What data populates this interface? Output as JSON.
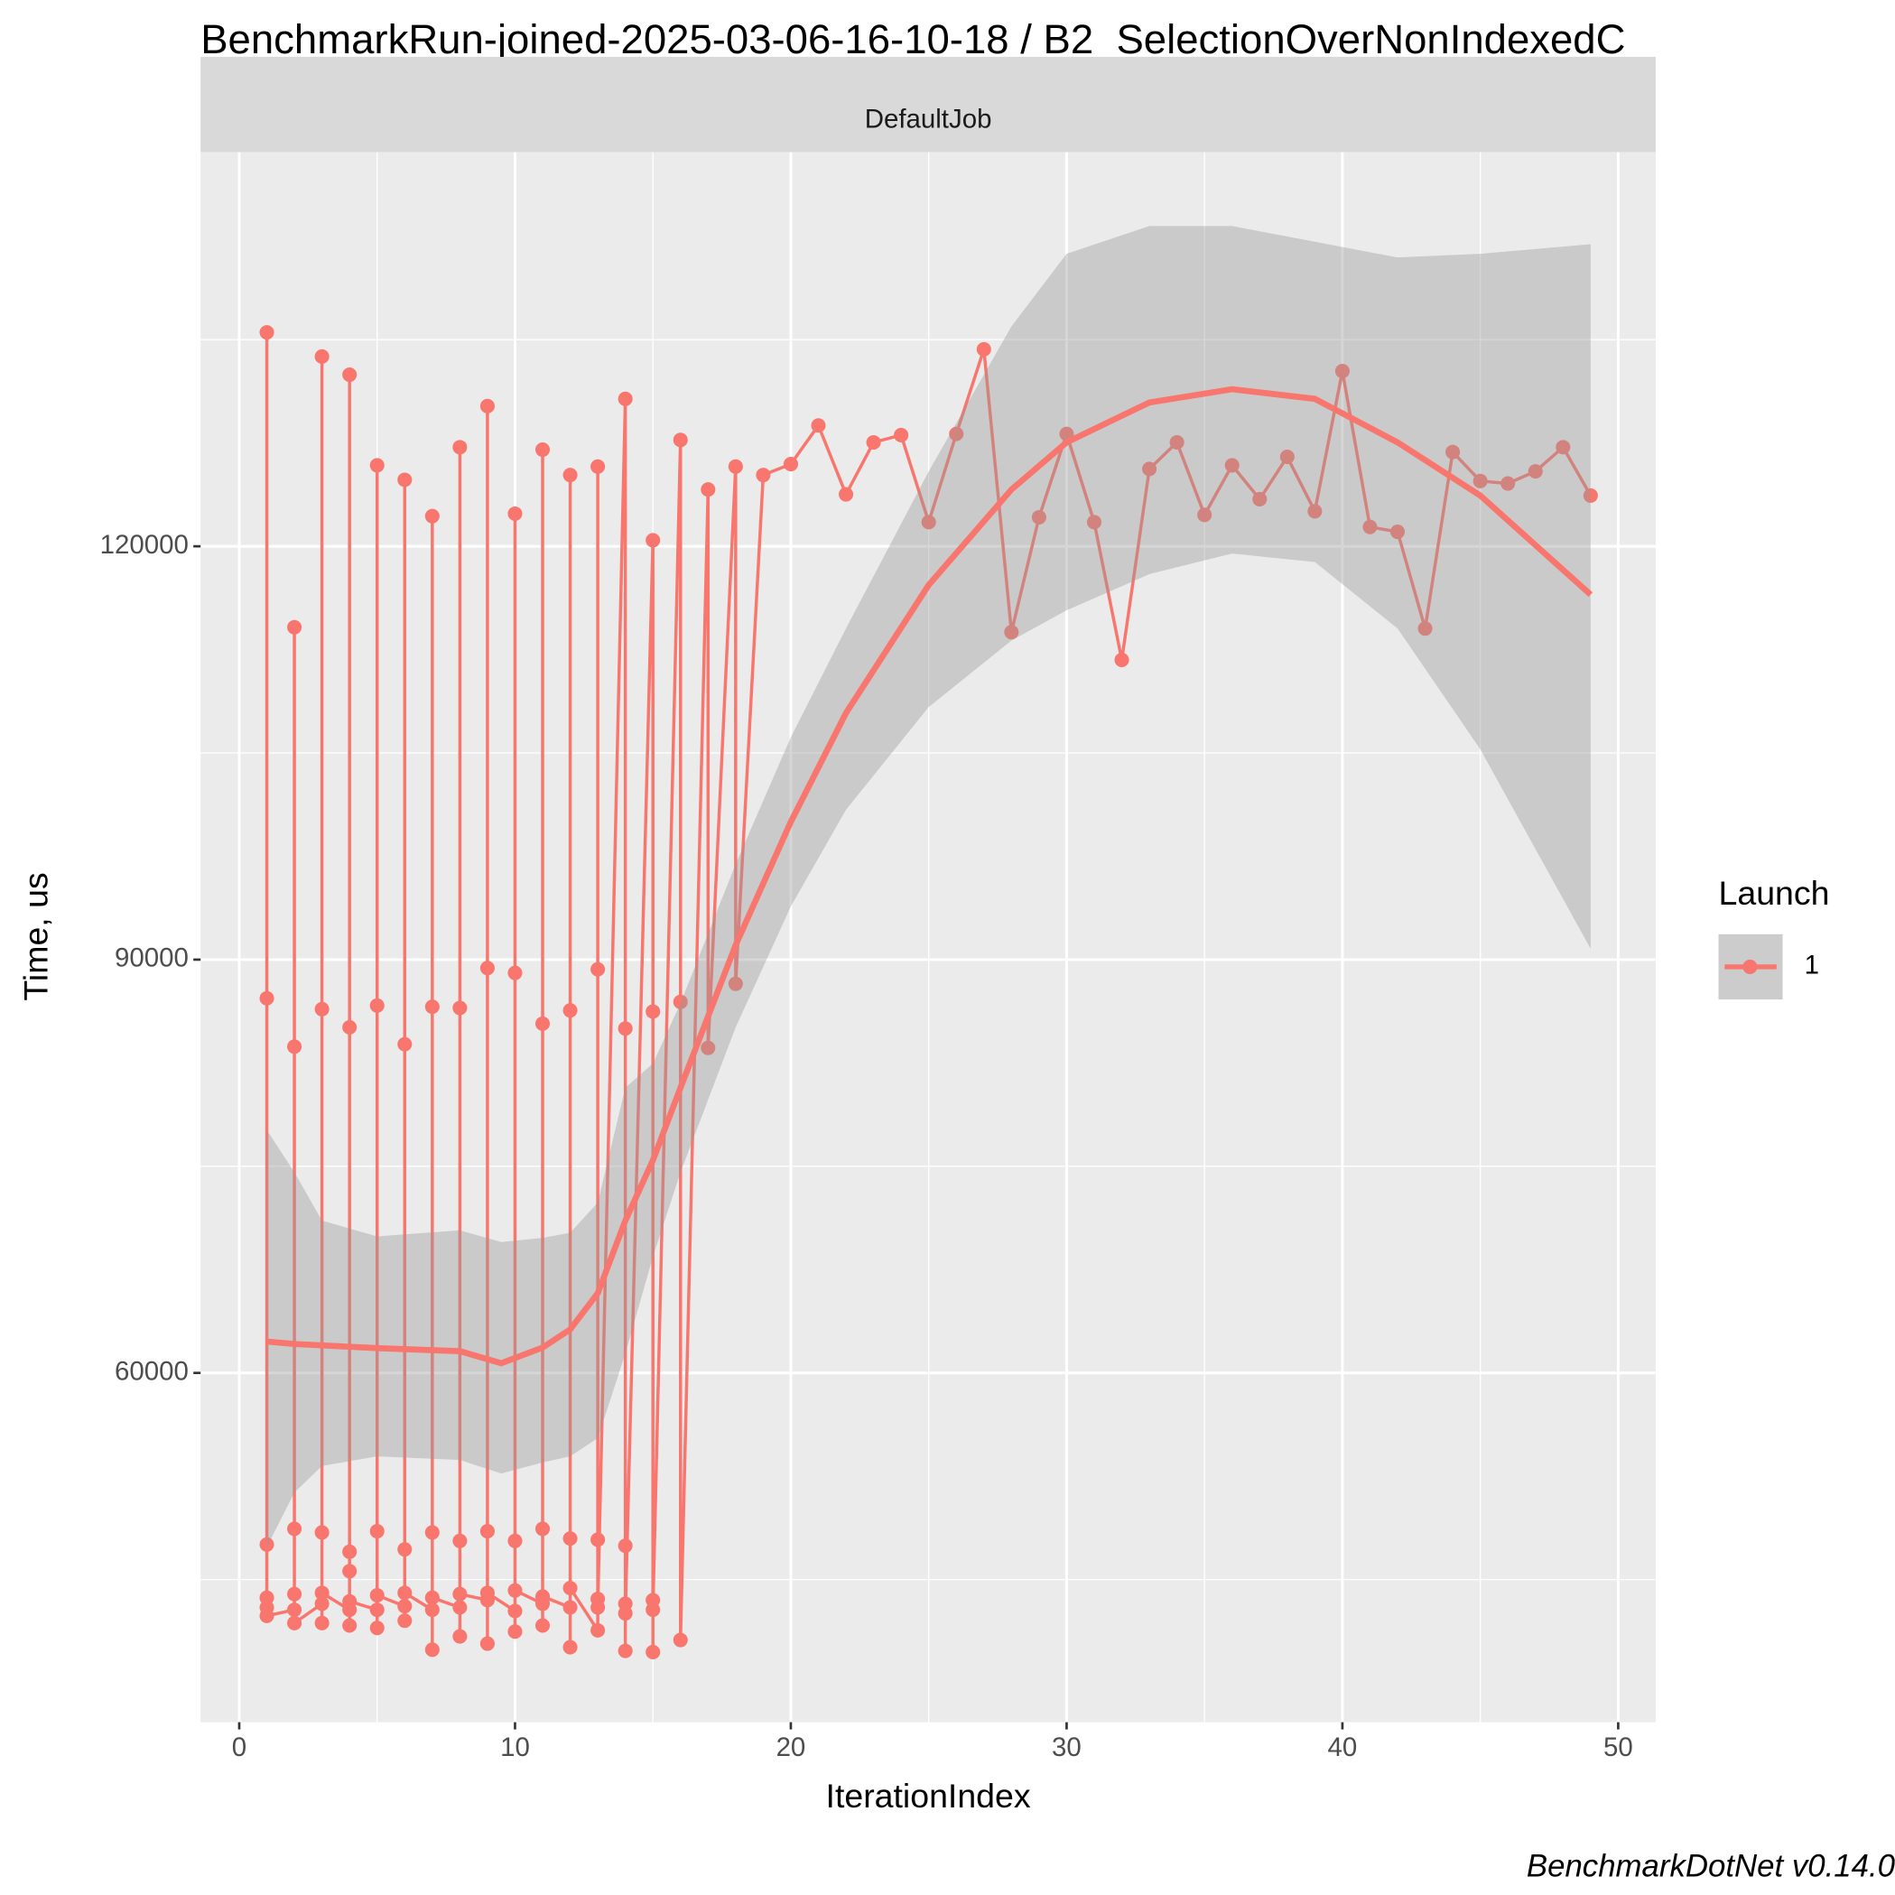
{
  "chart_data": {
    "type": "line",
    "title": "BenchmarkRun-joined-2025-03-06-16-10-18 / B2_SelectionOverNonIndexedC",
    "strip": "DefaultJob",
    "x_label": "IterationIndex",
    "y_label": "Time, us",
    "legend_title": "Launch",
    "caption": "BenchmarkDotNet v0.14.0",
    "grid": true,
    "xlim": [
      -1.4,
      51.36
    ],
    "ylim": [
      34650,
      148600
    ],
    "xticks": [
      0,
      10,
      20,
      30,
      40,
      50
    ],
    "yticks": [
      60000,
      90000,
      120000
    ],
    "xminor": [
      5,
      15,
      25,
      35,
      45
    ],
    "yminor": [
      45000,
      75000,
      105000,
      135000
    ],
    "series": [
      {
        "name": "1",
        "color": "#F8766D",
        "x": [
          1,
          1,
          1,
          1,
          1,
          1,
          2,
          2,
          2,
          2,
          2,
          2,
          3,
          3,
          3,
          3,
          3,
          3,
          4,
          4,
          4,
          4,
          4,
          4,
          4,
          5,
          5,
          5,
          5,
          5,
          5,
          6,
          6,
          6,
          6,
          6,
          6,
          7,
          7,
          7,
          7,
          7,
          7,
          8,
          8,
          8,
          8,
          8,
          8,
          9,
          9,
          9,
          9,
          9,
          9,
          10,
          10,
          10,
          10,
          10,
          10,
          11,
          11,
          11,
          11,
          11,
          11,
          12,
          12,
          12,
          12,
          12,
          12,
          13,
          13,
          13,
          13,
          13,
          13,
          14,
          14,
          14,
          14,
          14,
          14,
          15,
          15,
          15,
          15,
          15,
          16,
          16,
          16,
          17,
          17,
          18,
          18,
          19,
          20,
          21,
          22,
          23,
          24,
          25,
          26,
          27,
          28,
          29,
          30,
          31,
          32,
          33,
          34,
          35,
          36,
          37,
          38,
          39,
          40,
          41,
          42,
          43,
          44,
          45,
          46,
          47,
          48,
          49
        ],
        "values": [
          42982,
          135526,
          87193,
          47544,
          43684,
          42368,
          42807,
          114123,
          83684,
          48684,
          43947,
          41842,
          43246,
          133772,
          86404,
          48421,
          41842,
          44035,
          42807,
          132456,
          85088,
          47018,
          45614,
          41667,
          43421,
          42807,
          125877,
          86667,
          48509,
          41491,
          43860,
          43070,
          124825,
          83860,
          47193,
          42018,
          44035,
          42807,
          122193,
          86579,
          48421,
          39912,
          43684,
          42982,
          127193,
          86491,
          47807,
          40877,
          43947,
          43509,
          130175,
          89386,
          48509,
          40351,
          44035,
          42719,
          122368,
          89035,
          47807,
          41228,
          44211,
          43246,
          127018,
          85351,
          48684,
          41667,
          43772,
          42982,
          125175,
          86316,
          47982,
          40088,
          44386,
          41316,
          89298,
          47895,
          43596,
          125789,
          42982,
          130702,
          85000,
          47456,
          39825,
          43246,
          42544,
          120439,
          86228,
          43509,
          39737,
          42807,
          127719,
          86930,
          40614,
          124123,
          83596,
          125789,
          88246,
          125175,
          125965,
          128772,
          123772,
          127544,
          128070,
          121754,
          128158,
          134298,
          113772,
          122105,
          128158,
          121754,
          111754,
          125614,
          127544,
          122281,
          125877,
          123421,
          126491,
          122544,
          132719,
          121404,
          121053,
          114035,
          126842,
          124737,
          124561,
          125439,
          127193,
          123684
        ]
      }
    ],
    "smooth": {
      "color": "#F8766D",
      "band_color": "#999999",
      "x": [
        1,
        2,
        3,
        5,
        8,
        9.5,
        11,
        12,
        13,
        14,
        15,
        16,
        18,
        20,
        22,
        25,
        28,
        30,
        33,
        36,
        39,
        42,
        45,
        49
      ],
      "values": [
        62281,
        62100,
        62000,
        61800,
        61579,
        60702,
        61842,
        63158,
        65789,
        71053,
        75439,
        80702,
        91053,
        100000,
        107895,
        117193,
        124123,
        127544,
        130439,
        131404,
        130702,
        127544,
        123684,
        116491
      ],
      "lower": [
        47368,
        51316,
        53246,
        53947,
        53684,
        52700,
        53500,
        53947,
        55263,
        61404,
        68421,
        74561,
        85088,
        93860,
        100877,
        108333,
        113158,
        115351,
        117982,
        119474,
        118860,
        114035,
        105263,
        90789
      ],
      "upper": [
        77632,
        74561,
        71053,
        69912,
        70351,
        69500,
        69800,
        70175,
        72368,
        80702,
        82456,
        86842,
        96930,
        106140,
        114035,
        125439,
        135965,
        141228,
        143246,
        143246,
        142105,
        140965,
        141228,
        141930
      ]
    }
  }
}
